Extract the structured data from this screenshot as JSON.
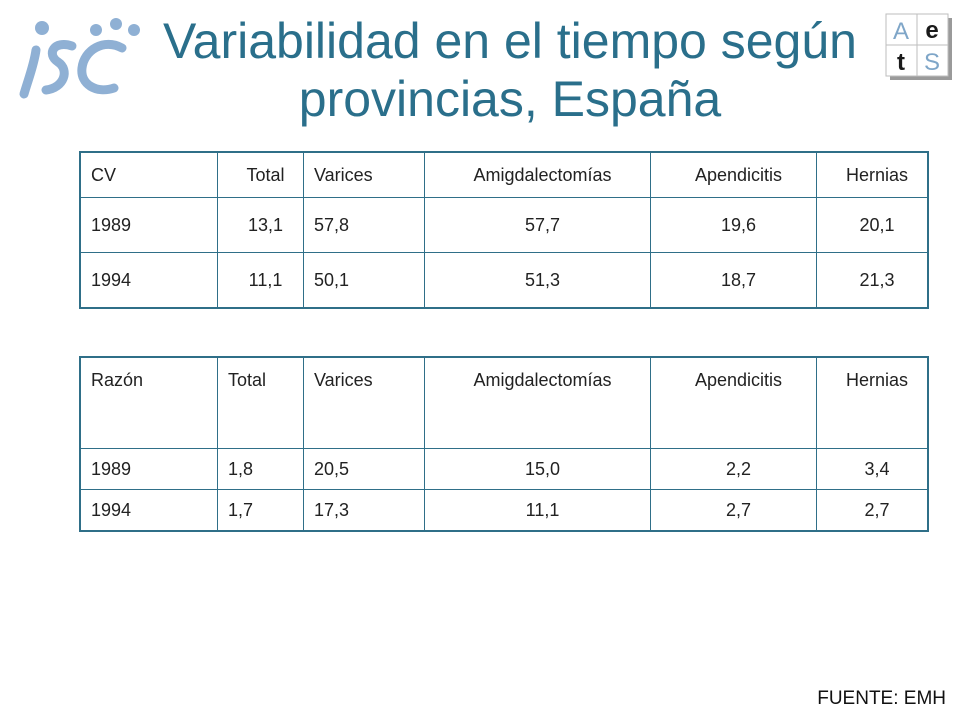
{
  "title": "Variabilidad en el tiempo según provincias, España",
  "logos": {
    "left_icon": "isc-logo",
    "right_icon": "aets-logo",
    "right_letters": [
      "A",
      "e",
      "t",
      "S"
    ],
    "right_letter_colors": {
      "A": "#7fa6c8",
      "e": "#1a1a1a",
      "t": "#1a1a1a",
      "S": "#7fa6c8"
    }
  },
  "colors": {
    "title": "#2a6f8b",
    "table_border": "#2f6f88",
    "isc_logo": "#8fb0d4"
  },
  "table_cv": {
    "headers": [
      "CV",
      "Total",
      "Varices",
      "Amigdalectomías",
      "Apendicitis",
      "Hernias"
    ],
    "rows": [
      [
        "1989",
        "13,1",
        "57,8",
        "57,7",
        "19,6",
        "20,1"
      ],
      [
        "1994",
        "11,1",
        "50,1",
        "51,3",
        "18,7",
        "21,3"
      ]
    ]
  },
  "table_razon": {
    "headers": [
      "Razón",
      "Total",
      "Varices",
      "Amigdalectomías",
      "Apendicitis",
      "Hernias"
    ],
    "rows": [
      [
        "1989",
        "1,8",
        "20,5",
        "15,0",
        "2,2",
        "3,4"
      ],
      [
        "1994",
        "1,7",
        "17,3",
        "11,1",
        "2,7",
        "2,7"
      ]
    ]
  },
  "source": "FUENTE: EMH"
}
